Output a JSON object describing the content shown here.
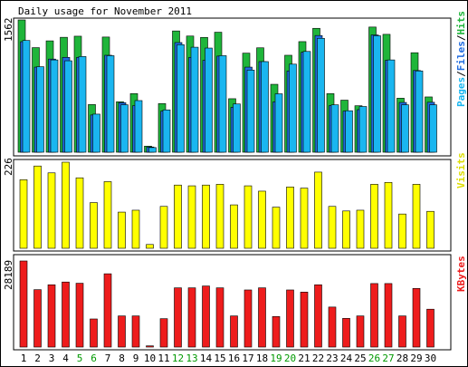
{
  "title": "Daily usage for November 2011",
  "colors": {
    "hits": "#1fb53a",
    "files": "#1f6be0",
    "pages": "#1ab6f0",
    "visits": "#ffff00",
    "kbytes": "#ee1c1c",
    "weekend_label": "#009900",
    "weekday_label": "#000000",
    "frame": "#000000",
    "grid": "#c0c0c0",
    "background": "#ffffff"
  },
  "chart_data": [
    {
      "type": "bar",
      "title": "Daily usage for November 2011",
      "categories": [
        "1",
        "2",
        "3",
        "4",
        "5",
        "6",
        "7",
        "8",
        "9",
        "10",
        "11",
        "12",
        "13",
        "14",
        "15",
        "16",
        "17",
        "18",
        "19",
        "20",
        "21",
        "22",
        "23",
        "24",
        "25",
        "26",
        "27",
        "28",
        "29",
        "30"
      ],
      "weekend_days": [
        "5",
        "6",
        "12",
        "13",
        "19",
        "20",
        "26",
        "27"
      ],
      "ylabel_parts": [
        "Pages",
        "Files",
        "Hits"
      ],
      "ymax_label": "1562",
      "ylim": [
        0,
        1562
      ],
      "series": [
        {
          "name": "Hits",
          "values": [
            1562,
            1235,
            1315,
            1357,
            1370,
            563,
            1360,
            596,
            692,
            72,
            574,
            1432,
            1372,
            1356,
            1417,
            632,
            1170,
            1233,
            802,
            1145,
            1306,
            1463,
            692,
            615,
            549,
            1478,
            1392,
            638,
            1175,
            653
          ]
        },
        {
          "name": "Files",
          "values": [
            1305,
            1005,
            1100,
            1120,
            1120,
            440,
            1145,
            585,
            550,
            62,
            485,
            1295,
            1120,
            1085,
            1135,
            530,
            1005,
            1070,
            595,
            960,
            1180,
            1378,
            551,
            485,
            503,
            1385,
            1085,
            588,
            965,
            590
          ]
        },
        {
          "name": "Pages",
          "values": [
            1320,
            1010,
            1090,
            1080,
            1130,
            450,
            1140,
            560,
            610,
            55,
            500,
            1270,
            1240,
            1230,
            1140,
            570,
            970,
            1070,
            690,
            1040,
            1190,
            1345,
            560,
            490,
            540,
            1375,
            1090,
            560,
            960,
            560
          ]
        }
      ]
    },
    {
      "type": "bar",
      "categories": [
        "1",
        "2",
        "3",
        "4",
        "5",
        "6",
        "7",
        "8",
        "9",
        "10",
        "11",
        "12",
        "13",
        "14",
        "15",
        "16",
        "17",
        "18",
        "19",
        "20",
        "21",
        "22",
        "23",
        "24",
        "25",
        "26",
        "27",
        "28",
        "29",
        "30"
      ],
      "ylabel": "Visits",
      "ymax_label": "226",
      "ylim": [
        0,
        226
      ],
      "series": [
        {
          "name": "Visits",
          "values": [
            180,
            216,
            198,
            226,
            185,
            120,
            175,
            95,
            100,
            10,
            110,
            166,
            164,
            166,
            168,
            114,
            164,
            150,
            108,
            161,
            158,
            200,
            110,
            98,
            100,
            168,
            173,
            90,
            168,
            97
          ]
        }
      ]
    },
    {
      "type": "bar",
      "categories": [
        "1",
        "2",
        "3",
        "4",
        "5",
        "6",
        "7",
        "8",
        "9",
        "10",
        "11",
        "12",
        "13",
        "14",
        "15",
        "16",
        "17",
        "18",
        "19",
        "20",
        "21",
        "22",
        "23",
        "24",
        "25",
        "26",
        "27",
        "28",
        "29",
        "30"
      ],
      "ylabel": "KBytes",
      "ymax_label": "28189",
      "ylim": [
        0,
        28189
      ],
      "series": [
        {
          "name": "KBytes",
          "values": [
            28189,
            18800,
            20400,
            21300,
            20900,
            9200,
            24000,
            10200,
            10200,
            400,
            9300,
            19400,
            19400,
            20000,
            19400,
            10200,
            18700,
            19400,
            10000,
            18700,
            18000,
            20400,
            13100,
            9400,
            10200,
            20800,
            20800,
            10200,
            19200,
            12400
          ]
        }
      ]
    }
  ]
}
